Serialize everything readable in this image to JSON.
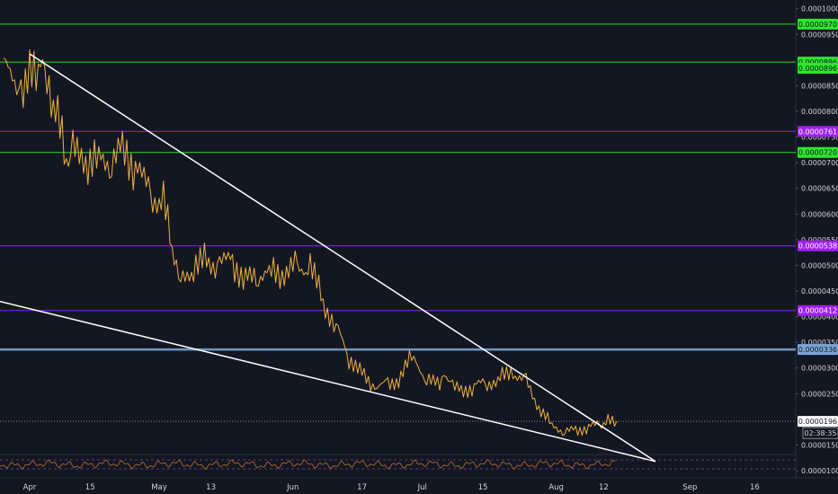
{
  "chart_data": {
    "type": "line",
    "colors": {
      "background": "#131722",
      "price": "#f0b040",
      "support_green": "#2ee62e",
      "resistance_purple": "#a020f0",
      "key_level_blue": "#7aa6d8",
      "trendline": "#ffffff",
      "axis_text": "#d1d4dc",
      "rsi": "#c07030"
    },
    "y_range": [
      8.6e-06,
      0.0001017
    ],
    "x_dates": [
      "Apr",
      "15",
      "May",
      "13",
      "Jun",
      "17",
      "Jul",
      "15",
      "Aug",
      "12",
      "Sep",
      "16"
    ],
    "y_ticks": [
      "0.0001000",
      "0.0000950",
      "0.0000850",
      "0.0000800",
      "0.0000750",
      "0.0000700",
      "0.0000650",
      "0.0000600",
      "0.0000550",
      "0.0000500",
      "0.0000450",
      "0.0000400",
      "0.0000350",
      "0.0000300",
      "0.0000250",
      "0.0000150",
      "0.0000100"
    ],
    "levels": [
      {
        "label": "0.0000970",
        "value": 9.7e-05,
        "type": "green"
      },
      {
        "label": "0.0000896",
        "value": 8.96e-05,
        "type": "green"
      },
      {
        "label": "0.0000761",
        "value": 7.61e-05,
        "type": "purple"
      },
      {
        "label": "0.0000720",
        "value": 7.2e-05,
        "type": "green"
      },
      {
        "label": "0.0000538",
        "value": 5.38e-05,
        "type": "purple"
      },
      {
        "label": "0.0000412",
        "value": 4.12e-05,
        "type": "purple"
      },
      {
        "label": "0.0000336",
        "value": 3.36e-05,
        "type": "blue"
      }
    ],
    "extra_label": {
      "label": "0.0000896",
      "value": 8.84e-05,
      "type": "green"
    },
    "current_price": {
      "label": "0.0000196",
      "value": 1.96e-05,
      "countdown": "02:38:35"
    },
    "trendlines": [
      {
        "from": {
          "day": 0,
          "price": 9.12e-05
        },
        "to": {
          "day": 145,
          "price": 1.18e-05
        }
      },
      {
        "from": {
          "day": -10,
          "price": 4.36e-05
        },
        "to": {
          "day": 145,
          "price": 1.18e-05
        }
      }
    ],
    "price_series": {
      "days": [
        -6,
        -2,
        0,
        2,
        4,
        6,
        8,
        10,
        13,
        16,
        19,
        22,
        25,
        28,
        31,
        33,
        35,
        38,
        41,
        44,
        47,
        50,
        53,
        56,
        59,
        62,
        65,
        68,
        71,
        74,
        77,
        80,
        83,
        86,
        89,
        92,
        95,
        96,
        98,
        100,
        103,
        106,
        109,
        112,
        115,
        118,
        121,
        124,
        127,
        130,
        132,
        134,
        136
      ],
      "values": [
        8.8e-05,
        8.5e-05,
        8.7e-05,
        8.95e-05,
        8.7e-05,
        8e-05,
        7.2e-05,
        7.2e-05,
        7e-05,
        7.1e-05,
        7e-05,
        7.3e-05,
        6.8e-05,
        6.4e-05,
        6.2e-05,
        5.4e-05,
        4.7e-05,
        4.95e-05,
        5.1e-05,
        5e-05,
        5.1e-05,
        4.7e-05,
        4.8e-05,
        4.9e-05,
        4.8e-05,
        5e-05,
        4.95e-05,
        4.3e-05,
        3.8e-05,
        3.2e-05,
        2.9e-05,
        2.6e-05,
        2.7e-05,
        2.8e-05,
        3.3e-05,
        2.7e-05,
        2.75e-05,
        2.8e-05,
        2.7e-05,
        2.55e-05,
        2.65e-05,
        2.7e-05,
        2.8e-05,
        2.9e-05,
        2.75e-05,
        2.2e-05,
        1.9e-05,
        1.75e-05,
        1.8e-05,
        1.85e-05,
        1.9e-05,
        1.96e-05,
        1.96e-05
      ]
    },
    "date_ticks": [
      {
        "label": "Apr",
        "day": 0
      },
      {
        "label": "15",
        "day": 14
      },
      {
        "label": "May",
        "day": 30
      },
      {
        "label": "13",
        "day": 42
      },
      {
        "label": "Jun",
        "day": 61
      },
      {
        "label": "17",
        "day": 77
      },
      {
        "label": "Jul",
        "day": 91
      },
      {
        "label": "15",
        "day": 105
      },
      {
        "label": "Aug",
        "day": 122
      },
      {
        "label": "12",
        "day": 133
      },
      {
        "label": "Sep",
        "day": 153
      },
      {
        "label": "16",
        "day": 168
      }
    ]
  }
}
